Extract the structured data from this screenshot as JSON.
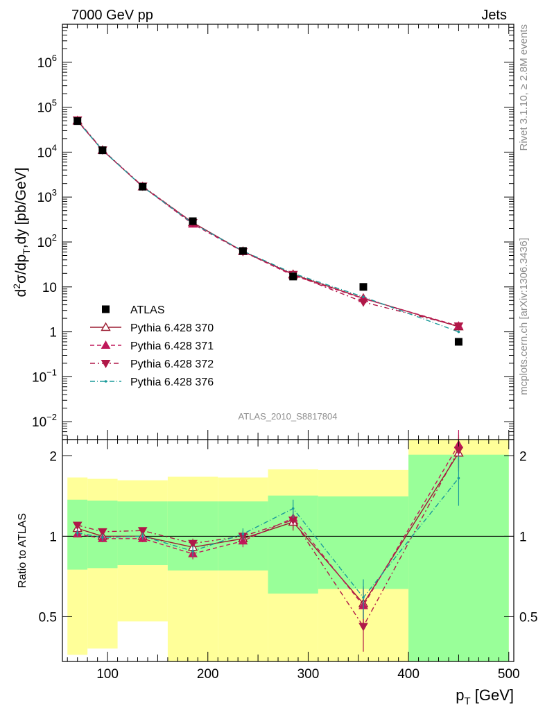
{
  "header": {
    "left": "7000 GeV pp",
    "right": "Jets"
  },
  "side_labels": {
    "rivet": "Rivet 3.1.10, ≥ 2.8M events",
    "mcplots": "mcplots.cern.ch [arXiv:1306.3436]"
  },
  "analysis_label": "ATLAS_2010_S8817804",
  "colors": {
    "data": "#000000",
    "p370": "#9b1b30",
    "p371": "#c0185a",
    "p372": "#b01848",
    "p376": "#1a9a9a",
    "band_inner": "#99ff99",
    "band_outer": "#ffff99"
  },
  "chart_data": [
    {
      "type": "scatter",
      "name": "main",
      "ylabel": {
        "main": "d",
        "sup": "2",
        "mid": "σ/dp",
        "sub": "T",
        "tail": ",dy [pb/GeV]"
      },
      "yscale": "log",
      "ylim": [
        0.004,
        7000000
      ],
      "yticks": [
        {
          "v": 0.01,
          "base": "10",
          "sup": "−2"
        },
        {
          "v": 0.1,
          "base": "10",
          "sup": "−1"
        },
        {
          "v": 1,
          "base": "1",
          "sup": ""
        },
        {
          "v": 10,
          "base": "10",
          "sup": ""
        },
        {
          "v": 100,
          "base": "10",
          "sup": "2"
        },
        {
          "v": 1000,
          "base": "10",
          "sup": "3"
        },
        {
          "v": 10000,
          "base": "10",
          "sup": "4"
        },
        {
          "v": 100000,
          "base": "10",
          "sup": "5"
        },
        {
          "v": 1000000,
          "base": "10",
          "sup": "6"
        }
      ],
      "x": [
        70,
        95,
        135,
        185,
        235,
        285,
        355,
        450
      ],
      "data": {
        "name": "ATLAS",
        "values": [
          49000,
          11000,
          1700,
          290,
          63,
          17,
          10,
          0.6
        ]
      },
      "series": [
        {
          "name": "Pythia 6.428 370",
          "style": "open-triangle-up",
          "dash": "",
          "values": [
            50000,
            11000,
            1700,
            270,
            62,
            19,
            5.6,
            1.3
          ]
        },
        {
          "name": "Pythia 6.428 371",
          "style": "filled-triangle-up",
          "dash": "6,4",
          "values": [
            49000,
            11000,
            1700,
            250,
            61,
            18,
            5.5,
            1.35
          ]
        },
        {
          "name": "Pythia 6.428 372",
          "style": "filled-triangle-down",
          "dash": "7,4,2,4",
          "values": [
            52000,
            11200,
            1750,
            270,
            61,
            19,
            4.6,
            1.35
          ]
        },
        {
          "name": "Pythia 6.428 376",
          "style": "dot",
          "dash": "7,3,1,3",
          "values": [
            49000,
            11000,
            1700,
            260,
            63,
            20,
            6.0,
            1.0
          ]
        }
      ],
      "legend_position": "bottom-left"
    },
    {
      "type": "line",
      "name": "ratio",
      "ylabel": "Ratio to ATLAS",
      "xlabel": {
        "main": "p",
        "sub": "T",
        "tail": " [GeV]"
      },
      "xlim": [
        55,
        505
      ],
      "ylim": [
        0.34,
        2.3
      ],
      "xticks": [
        100,
        200,
        300,
        400,
        500
      ],
      "yticks": [
        0.5,
        1,
        2
      ],
      "bins": [
        [
          60,
          80
        ],
        [
          80,
          110
        ],
        [
          110,
          160
        ],
        [
          160,
          210
        ],
        [
          210,
          260
        ],
        [
          260,
          310
        ],
        [
          310,
          400
        ],
        [
          400,
          500
        ]
      ],
      "band_inner": [
        [
          0.75,
          1.37
        ],
        [
          0.76,
          1.36
        ],
        [
          0.78,
          1.35
        ],
        [
          0.745,
          1.35
        ],
        [
          0.745,
          1.35
        ],
        [
          0.61,
          1.42
        ],
        [
          0.635,
          1.41
        ],
        [
          0.34,
          2.02
        ]
      ],
      "band_outer": [
        [
          0.36,
          1.66
        ],
        [
          0.38,
          1.64
        ],
        [
          0.48,
          1.62
        ],
        [
          0.34,
          1.67
        ],
        [
          0.34,
          1.66
        ],
        [
          0.34,
          1.78
        ],
        [
          0.34,
          1.77
        ],
        [
          0.34,
          2.3
        ]
      ],
      "x": [
        70,
        95,
        135,
        185,
        235,
        285,
        355,
        450
      ],
      "series": [
        {
          "name": "Pythia 6.428 370",
          "values": [
            1.07,
            1.0,
            1.0,
            0.91,
            0.98,
            1.13,
            0.56,
            2.05
          ],
          "err": [
            0.03,
            0.03,
            0.03,
            0.04,
            0.05,
            0.08,
            0.09,
            0.3
          ]
        },
        {
          "name": "Pythia 6.428 371",
          "values": [
            1.02,
            0.98,
            0.98,
            0.86,
            0.96,
            1.17,
            0.55,
            2.2
          ],
          "err": [
            0.03,
            0.03,
            0.03,
            0.04,
            0.05,
            0.08,
            0.09,
            0.3
          ]
        },
        {
          "name": "Pythia 6.428 372",
          "values": [
            1.1,
            1.04,
            1.05,
            0.94,
            1.0,
            1.15,
            0.46,
            2.1
          ],
          "err": [
            0.03,
            0.03,
            0.03,
            0.04,
            0.05,
            0.08,
            0.09,
            0.3
          ]
        },
        {
          "name": "Pythia 6.428 376",
          "values": [
            1.03,
            0.99,
            1.0,
            0.88,
            1.02,
            1.27,
            0.59,
            1.65
          ],
          "err": [
            0.03,
            0.03,
            0.03,
            0.04,
            0.05,
            0.1,
            0.1,
            0.35
          ]
        }
      ]
    }
  ]
}
